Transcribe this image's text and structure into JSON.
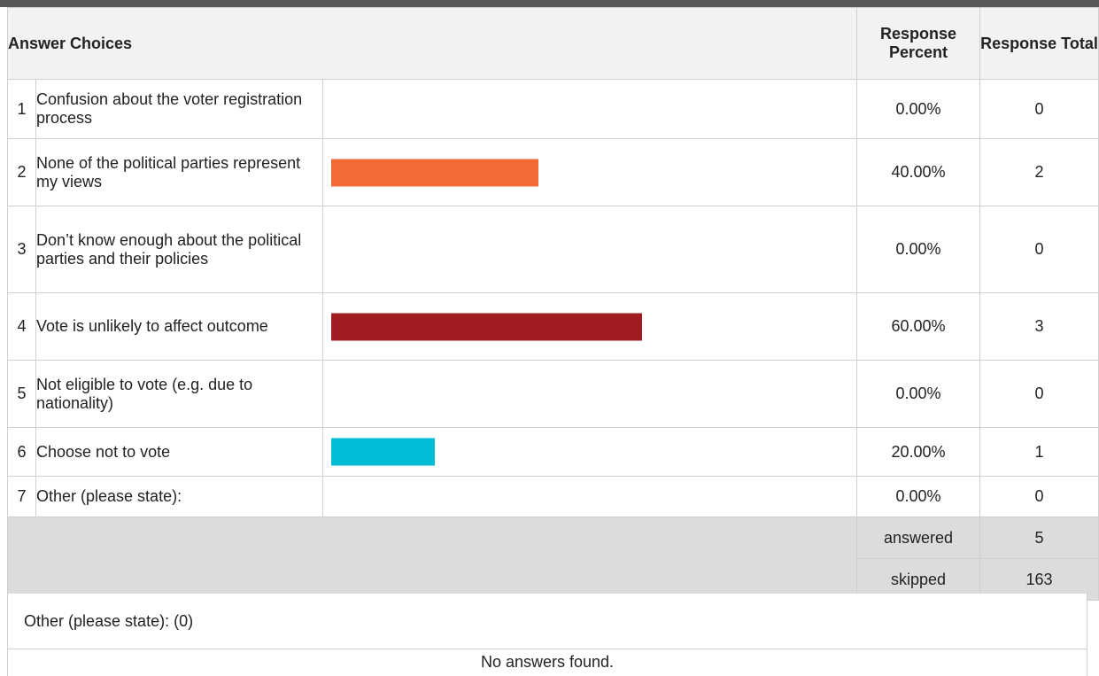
{
  "header": {
    "answer_choices": "Answer Choices",
    "response_percent": "Response Percent",
    "response_total": "Response Total"
  },
  "rows": [
    {
      "num": "1",
      "label": "Confusion about the voter registration process",
      "percent": "0.00%",
      "total": "0",
      "color": "#f26b36"
    },
    {
      "num": "2",
      "label": "None of the political parties represent my views",
      "percent": "40.00%",
      "total": "2",
      "color": "#f26b36"
    },
    {
      "num": "3",
      "label": "Don’t know enough about the political parties and their policies",
      "percent": "0.00%",
      "total": "0",
      "color": "#f26b36"
    },
    {
      "num": "4",
      "label": "Vote is unlikely to affect outcome",
      "percent": "60.00%",
      "total": "3",
      "color": "#a21d21"
    },
    {
      "num": "5",
      "label": "Not eligible to vote (e.g. due to nationality)",
      "percent": "0.00%",
      "total": "0",
      "color": "#f26b36"
    },
    {
      "num": "6",
      "label": "Choose not to vote",
      "percent": "20.00%",
      "total": "1",
      "color": "#00bcd4"
    },
    {
      "num": "7",
      "label": "Other (please state):",
      "percent": "0.00%",
      "total": "0",
      "color": "#f26b36"
    }
  ],
  "footer": {
    "answered_label": "answered",
    "answered_value": "5",
    "skipped_label": "skipped",
    "skipped_value": "163"
  },
  "other_section": {
    "title": "Other (please state): (0)",
    "empty_message": "No answers found."
  },
  "chart_data": {
    "type": "bar",
    "categories": [
      "Confusion about the voter registration process",
      "None of the political parties represent my views",
      "Don’t know enough about the political parties and their policies",
      "Vote is unlikely to affect outcome",
      "Not eligible to vote (e.g. due to nationality)",
      "Choose not to vote",
      "Other (please state):"
    ],
    "values": [
      0,
      40,
      0,
      60,
      0,
      20,
      0
    ],
    "totals": [
      0,
      2,
      0,
      3,
      0,
      1,
      0
    ],
    "xlim": [
      0,
      100
    ]
  }
}
